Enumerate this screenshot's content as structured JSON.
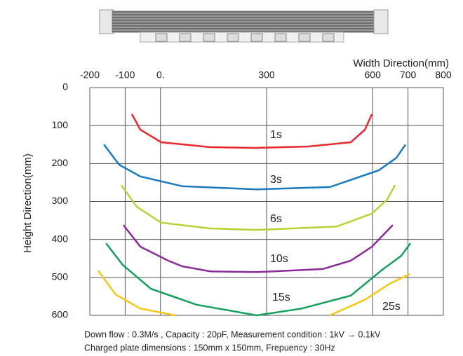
{
  "chart_data": {
    "type": "line",
    "x_label": "Width Direction(mm)",
    "y_label": "Height Direction(mm)",
    "notes": [
      "Down flow : 0.3M/s , Capacity : 20pF, Measurement condition : 1kV → 0.1kV",
      "Charged plate dimensions : 150mm x 150mm, Frepuency : 30Hz"
    ],
    "xlim": [
      -200,
      800
    ],
    "xticks": [
      -200,
      -100,
      {
        "value": 0,
        "label": "0."
      },
      300,
      600,
      700,
      800
    ],
    "ylim": [
      0,
      600
    ],
    "yticks": [
      0,
      100,
      200,
      300,
      400,
      500,
      600
    ],
    "y_inverted": true,
    "grid": true,
    "series": [
      {
        "name": "1s",
        "color": "#e8262d",
        "x": [
          -81,
          -57,
          2,
          141,
          272,
          419,
          538,
          578,
          598
        ],
        "values": [
          70,
          111,
          144,
          157,
          159,
          155,
          144,
          111,
          70
        ]
      },
      {
        "name": "3s",
        "color": "#1a7abf",
        "x": [
          -160,
          -117,
          -57,
          62,
          272,
          479,
          617,
          667,
          693
        ],
        "values": [
          150,
          203,
          234,
          260,
          268,
          262,
          218,
          185,
          150
        ]
      },
      {
        "name": "6s",
        "color": "#b5d334",
        "x": [
          -111,
          -67,
          2,
          141,
          272,
          498,
          598,
          641,
          663
        ],
        "values": [
          257,
          314,
          356,
          371,
          375,
          366,
          332,
          295,
          257
        ]
      },
      {
        "name": "10s",
        "color": "#8a2a9a",
        "x": [
          -105,
          -57,
          22,
          62,
          141,
          272,
          459,
          538,
          598,
          657
        ],
        "values": [
          362,
          419,
          456,
          471,
          484,
          486,
          478,
          456,
          419,
          362
        ]
      },
      {
        "name": "15s",
        "color": "#14a05a",
        "x": [
          -154,
          -107,
          -27,
          102,
          272,
          399,
          538,
          627,
          681,
          707
        ],
        "values": [
          410,
          467,
          530,
          572,
          600,
          582,
          548,
          480,
          443,
          410
        ]
      },
      {
        "name": "25s",
        "color": "#f5c518",
        "x": [
          -176,
          -127,
          -57,
          42,
          null,
          479,
          578,
          648,
          705
        ],
        "values": [
          482,
          545,
          582,
          600,
          null,
          600,
          559,
          517,
          491
        ]
      }
    ]
  }
}
